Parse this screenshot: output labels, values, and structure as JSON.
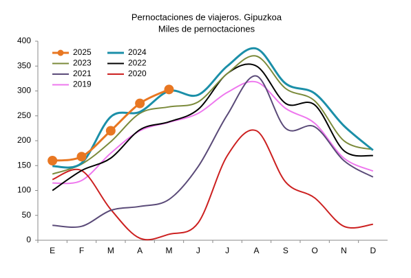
{
  "chart_data": {
    "type": "line",
    "title": "Pernoctaciones de viajeros. Gipuzkoa",
    "subtitle": "Miles de pernoctaciones",
    "categories": [
      "E",
      "F",
      "M",
      "A",
      "M",
      "J",
      "J",
      "A",
      "S",
      "O",
      "N",
      "D"
    ],
    "ylim": [
      0,
      400
    ],
    "yticks": [
      0,
      50,
      100,
      150,
      200,
      250,
      300,
      350,
      400
    ],
    "legend": "upper left",
    "series": [
      {
        "name": "2025",
        "color": "#e87722",
        "marker": "circle",
        "values": [
          160,
          168,
          220,
          275,
          303,
          null,
          null,
          null,
          null,
          null,
          null,
          null
        ]
      },
      {
        "name": "2024",
        "color": "#1b8fa8",
        "values": [
          149,
          155,
          248,
          258,
          300,
          292,
          350,
          385,
          315,
          295,
          230,
          181
        ]
      },
      {
        "name": "2023",
        "color": "#7b8a3a",
        "values": [
          133,
          153,
          198,
          255,
          268,
          278,
          335,
          370,
          305,
          280,
          200,
          182
        ]
      },
      {
        "name": "2022",
        "color": "#000000",
        "values": [
          100,
          140,
          165,
          222,
          238,
          263,
          335,
          350,
          275,
          272,
          180,
          170
        ]
      },
      {
        "name": "2021",
        "color": "#5a4a78",
        "values": [
          30,
          28,
          60,
          68,
          82,
          148,
          252,
          330,
          225,
          228,
          160,
          127
        ]
      },
      {
        "name": "2020",
        "color": "#cc2020",
        "values": [
          122,
          140,
          62,
          4,
          12,
          35,
          170,
          220,
          117,
          85,
          28,
          32
        ]
      },
      {
        "name": "2019",
        "color": "#ee77ee",
        "values": [
          115,
          120,
          175,
          220,
          237,
          255,
          297,
          318,
          265,
          235,
          165,
          139
        ]
      }
    ]
  }
}
